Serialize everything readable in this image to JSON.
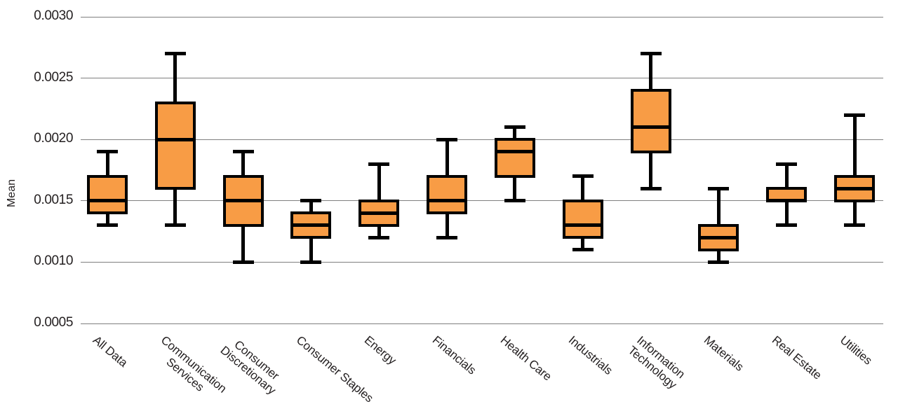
{
  "chart_data": {
    "type": "box",
    "title": "",
    "ylabel": "Mean",
    "xlabel": "",
    "ylim": [
      0.0005,
      0.003
    ],
    "grid": true,
    "legend": "none",
    "yticks": [
      {
        "value": 0.003,
        "label": "0.0030"
      },
      {
        "value": 0.0025,
        "label": "0.0025"
      },
      {
        "value": 0.002,
        "label": "0.0020"
      },
      {
        "value": 0.0015,
        "label": "0.0015"
      },
      {
        "value": 0.001,
        "label": "0.0010"
      },
      {
        "value": 0.0005,
        "label": "0.0005"
      }
    ],
    "categories": [
      "All Data",
      "Communication Services",
      "Consumer Discretionary",
      "Consumer Staples",
      "Energy",
      "Financials",
      "Health Care",
      "Industrials",
      "Information Technology",
      "Materials",
      "Real Estate",
      "Utilities"
    ],
    "boxes": [
      {
        "name": "All Data",
        "label": "All Data",
        "whisker_low": 0.0013,
        "q1": 0.0014,
        "median": 0.0015,
        "q3": 0.0017,
        "whisker_high": 0.0019
      },
      {
        "name": "Communication Services",
        "label": "Communication\nServices",
        "whisker_low": 0.0013,
        "q1": 0.0016,
        "median": 0.002,
        "q3": 0.0023,
        "whisker_high": 0.0027
      },
      {
        "name": "Consumer Discretionary",
        "label": "Consumer\nDiscretionary",
        "whisker_low": 0.001,
        "q1": 0.0013,
        "median": 0.0015,
        "q3": 0.0017,
        "whisker_high": 0.0019
      },
      {
        "name": "Consumer Staples",
        "label": "Consumer Staples",
        "whisker_low": 0.001,
        "q1": 0.0012,
        "median": 0.0013,
        "q3": 0.0014,
        "whisker_high": 0.0015
      },
      {
        "name": "Energy",
        "label": "Energy",
        "whisker_low": 0.0012,
        "q1": 0.0013,
        "median": 0.0014,
        "q3": 0.0015,
        "whisker_high": 0.0018
      },
      {
        "name": "Financials",
        "label": "Financials",
        "whisker_low": 0.0012,
        "q1": 0.0014,
        "median": 0.0015,
        "q3": 0.0017,
        "whisker_high": 0.002
      },
      {
        "name": "Health Care",
        "label": "Health Care",
        "whisker_low": 0.0015,
        "q1": 0.0017,
        "median": 0.0019,
        "q3": 0.002,
        "whisker_high": 0.0021
      },
      {
        "name": "Industrials",
        "label": "Industrials",
        "whisker_low": 0.0011,
        "q1": 0.0012,
        "median": 0.0013,
        "q3": 0.0015,
        "whisker_high": 0.0017
      },
      {
        "name": "Information Technology",
        "label": "Information\nTechnology",
        "whisker_low": 0.0016,
        "q1": 0.0019,
        "median": 0.0021,
        "q3": 0.0024,
        "whisker_high": 0.0027
      },
      {
        "name": "Materials",
        "label": "Materials",
        "whisker_low": 0.001,
        "q1": 0.0011,
        "median": 0.0012,
        "q3": 0.0013,
        "whisker_high": 0.0016
      },
      {
        "name": "Real Estate",
        "label": "Real Estate",
        "whisker_low": 0.0013,
        "q1": 0.0015,
        "median": 0.0015,
        "q3": 0.0016,
        "whisker_high": 0.0018
      },
      {
        "name": "Utilities",
        "label": "Utilities",
        "whisker_low": 0.0013,
        "q1": 0.0015,
        "median": 0.0016,
        "q3": 0.0017,
        "whisker_high": 0.0022
      }
    ],
    "colors": {
      "box_fill": "#F89C45",
      "line": "#000000",
      "grid": "#7F7F7F",
      "text": "#231F20",
      "background": "#FFFFFF"
    }
  }
}
